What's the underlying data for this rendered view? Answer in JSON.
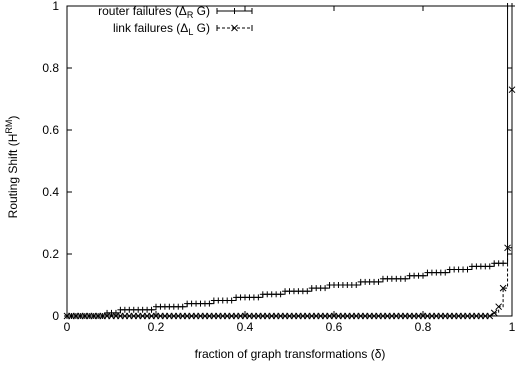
{
  "chart_data": {
    "type": "scatter",
    "title": "",
    "xlabel": "fraction of graph transformations (δ)",
    "ylabel": {
      "base": "Routing Shift (H",
      "sup": "RM",
      "end": ")"
    },
    "xlim": [
      0,
      1
    ],
    "ylim": [
      0,
      1
    ],
    "x_ticks": [
      0,
      0.2,
      0.4,
      0.6,
      0.8,
      1
    ],
    "x_tick_labels": [
      "0",
      "0.2",
      "0.4",
      "0.6",
      "0.8",
      "1"
    ],
    "y_ticks": [
      0,
      0.2,
      0.4,
      0.6,
      0.8,
      1
    ],
    "y_tick_labels": [
      "0",
      "0.2",
      "0.4",
      "0.6",
      "0.8",
      "1"
    ],
    "grid": false,
    "legend_position": "top-left",
    "legend": [
      {
        "label": "router failures (Δ",
        "sub": "R",
        "end": " G)",
        "marker": "plus",
        "line": "solid"
      },
      {
        "label": "link failures (Δ",
        "sub": "L",
        "end": " G)",
        "marker": "cross",
        "line": "dashed"
      }
    ],
    "series": [
      {
        "marker": "plus",
        "line": "solid",
        "x": [
          0.0,
          0.01,
          0.02,
          0.03,
          0.04,
          0.05,
          0.06,
          0.07,
          0.08,
          0.09,
          0.1,
          0.11,
          0.12,
          0.13,
          0.14,
          0.15,
          0.16,
          0.17,
          0.18,
          0.19,
          0.2,
          0.21,
          0.22,
          0.23,
          0.24,
          0.25,
          0.26,
          0.27,
          0.28,
          0.29,
          0.3,
          0.31,
          0.32,
          0.33,
          0.34,
          0.35,
          0.36,
          0.37,
          0.38,
          0.39,
          0.4,
          0.41,
          0.42,
          0.43,
          0.44,
          0.45,
          0.46,
          0.47,
          0.48,
          0.49,
          0.5,
          0.51,
          0.52,
          0.53,
          0.54,
          0.55,
          0.56,
          0.57,
          0.58,
          0.59,
          0.6,
          0.61,
          0.62,
          0.63,
          0.64,
          0.65,
          0.66,
          0.67,
          0.68,
          0.69,
          0.7,
          0.71,
          0.72,
          0.73,
          0.74,
          0.75,
          0.76,
          0.77,
          0.78,
          0.79,
          0.8,
          0.81,
          0.82,
          0.83,
          0.84,
          0.85,
          0.86,
          0.87,
          0.88,
          0.89,
          0.9,
          0.91,
          0.92,
          0.93,
          0.94,
          0.95,
          0.96,
          0.97,
          0.98,
          0.99,
          1.0
        ],
        "y": [
          0.0,
          0.0,
          0.0,
          0.0,
          0.0,
          0.0,
          0.0,
          0.0,
          0.0,
          0.01,
          0.01,
          0.01,
          0.02,
          0.02,
          0.02,
          0.02,
          0.02,
          0.02,
          0.02,
          0.02,
          0.03,
          0.03,
          0.03,
          0.03,
          0.03,
          0.03,
          0.03,
          0.04,
          0.04,
          0.04,
          0.04,
          0.04,
          0.04,
          0.05,
          0.05,
          0.05,
          0.05,
          0.05,
          0.06,
          0.06,
          0.06,
          0.06,
          0.06,
          0.06,
          0.07,
          0.07,
          0.07,
          0.07,
          0.07,
          0.08,
          0.08,
          0.08,
          0.08,
          0.08,
          0.08,
          0.09,
          0.09,
          0.09,
          0.09,
          0.1,
          0.1,
          0.1,
          0.1,
          0.1,
          0.1,
          0.1,
          0.11,
          0.11,
          0.11,
          0.11,
          0.11,
          0.12,
          0.12,
          0.12,
          0.12,
          0.12,
          0.12,
          0.13,
          0.13,
          0.13,
          0.13,
          0.14,
          0.14,
          0.14,
          0.14,
          0.14,
          0.15,
          0.15,
          0.15,
          0.15,
          0.15,
          0.16,
          0.16,
          0.16,
          0.16,
          0.16,
          0.17,
          0.17,
          0.17,
          1.0,
          1.0
        ]
      },
      {
        "marker": "cross",
        "line": "dashed",
        "x": [
          0.0,
          0.01,
          0.02,
          0.03,
          0.04,
          0.05,
          0.06,
          0.07,
          0.08,
          0.09,
          0.1,
          0.11,
          0.12,
          0.13,
          0.14,
          0.15,
          0.16,
          0.17,
          0.18,
          0.19,
          0.2,
          0.21,
          0.22,
          0.23,
          0.24,
          0.25,
          0.26,
          0.27,
          0.28,
          0.29,
          0.3,
          0.31,
          0.32,
          0.33,
          0.34,
          0.35,
          0.36,
          0.37,
          0.38,
          0.39,
          0.4,
          0.41,
          0.42,
          0.43,
          0.44,
          0.45,
          0.46,
          0.47,
          0.48,
          0.49,
          0.5,
          0.51,
          0.52,
          0.53,
          0.54,
          0.55,
          0.56,
          0.57,
          0.58,
          0.59,
          0.6,
          0.61,
          0.62,
          0.63,
          0.64,
          0.65,
          0.66,
          0.67,
          0.68,
          0.69,
          0.7,
          0.71,
          0.72,
          0.73,
          0.74,
          0.75,
          0.76,
          0.77,
          0.78,
          0.79,
          0.8,
          0.81,
          0.82,
          0.83,
          0.84,
          0.85,
          0.86,
          0.87,
          0.88,
          0.89,
          0.9,
          0.91,
          0.92,
          0.93,
          0.94,
          0.95,
          0.96,
          0.97,
          0.98,
          0.99,
          1.0
        ],
        "y": [
          0.0,
          0.0,
          0.0,
          0.0,
          0.0,
          0.0,
          0.0,
          0.0,
          0.0,
          0.0,
          0.0,
          0.0,
          0.0,
          0.0,
          0.0,
          0.0,
          0.0,
          0.0,
          0.0,
          0.0,
          0.0,
          0.0,
          0.0,
          0.0,
          0.0,
          0.0,
          0.0,
          0.0,
          0.0,
          0.0,
          0.0,
          0.0,
          0.0,
          0.0,
          0.0,
          0.0,
          0.0,
          0.0,
          0.0,
          0.0,
          0.0,
          0.0,
          0.0,
          0.0,
          0.0,
          0.0,
          0.0,
          0.0,
          0.0,
          0.0,
          0.0,
          0.0,
          0.0,
          0.0,
          0.0,
          0.0,
          0.0,
          0.0,
          0.0,
          0.0,
          0.0,
          0.0,
          0.0,
          0.0,
          0.0,
          0.0,
          0.0,
          0.0,
          0.0,
          0.0,
          0.0,
          0.0,
          0.0,
          0.0,
          0.0,
          0.0,
          0.0,
          0.0,
          0.0,
          0.0,
          0.0,
          0.0,
          0.0,
          0.0,
          0.0,
          0.0,
          0.0,
          0.0,
          0.0,
          0.0,
          0.0,
          0.0,
          0.0,
          0.0,
          0.0,
          0.0,
          0.01,
          0.03,
          0.09,
          0.22,
          0.73
        ]
      }
    ]
  }
}
